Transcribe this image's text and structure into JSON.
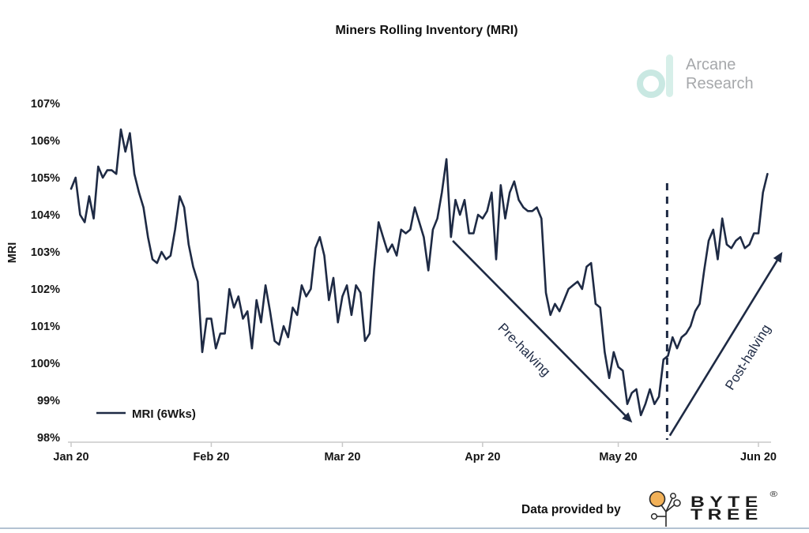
{
  "header": {
    "arcane_logo": {
      "line1": "Arcane",
      "line2": "Research",
      "icon": "arcane-a-icon",
      "icon_color": "#c9e8e2",
      "text_color": "#a6a8ab"
    }
  },
  "footer": {
    "data_provided_by": "Data provided by",
    "bytetree_word_line1": "BYTE",
    "bytetree_word_line2": "TREE",
    "registered_mark": "®",
    "bytetree_icon": "bytetree-tree-icon",
    "bytetree_orange": "#f2b158",
    "divider_color": "#b3c2d2"
  },
  "chart_data": {
    "type": "line",
    "title": "Miners Rolling Inventory (MRI)",
    "ylabel": "MRI",
    "xlabel": "",
    "x_unit": "days since Jan 1 2020, daily data",
    "ylim": [
      98,
      107
    ],
    "grid": false,
    "legend_position": "lower-left",
    "line_color": "#1e2a44",
    "axis_color": "#c9c9c9",
    "yticks": [
      {
        "value": 98,
        "label": "98%"
      },
      {
        "value": 99,
        "label": "99%"
      },
      {
        "value": 100,
        "label": "100%"
      },
      {
        "value": 101,
        "label": "101%"
      },
      {
        "value": 102,
        "label": "102%"
      },
      {
        "value": 103,
        "label": "103%"
      },
      {
        "value": 104,
        "label": "104%"
      },
      {
        "value": 105,
        "label": "105%"
      },
      {
        "value": 106,
        "label": "106%"
      },
      {
        "value": 107,
        "label": "107%"
      }
    ],
    "xticks": [
      {
        "day": 0,
        "label": "Jan 20"
      },
      {
        "day": 31,
        "label": "Feb 20"
      },
      {
        "day": 60,
        "label": "Mar 20"
      },
      {
        "day": 91,
        "label": "Apr 20"
      },
      {
        "day": 121,
        "label": "May 20"
      },
      {
        "day": 152,
        "label": "Jun 20"
      }
    ],
    "series": [
      {
        "name": "MRI (6Wks)",
        "start_day": 0,
        "values": [
          104.7,
          105.0,
          104.0,
          103.8,
          104.5,
          103.9,
          105.3,
          105.0,
          105.2,
          105.2,
          105.1,
          106.3,
          105.7,
          106.2,
          105.1,
          104.6,
          104.2,
          103.4,
          102.8,
          102.7,
          103.0,
          102.8,
          102.9,
          103.6,
          104.5,
          104.2,
          103.2,
          102.6,
          102.2,
          100.3,
          101.2,
          101.2,
          100.4,
          100.8,
          100.8,
          102.0,
          101.5,
          101.8,
          101.2,
          101.4,
          100.4,
          101.7,
          101.1,
          102.1,
          101.4,
          100.6,
          100.5,
          101.0,
          100.7,
          101.5,
          101.3,
          102.1,
          101.8,
          102.0,
          103.1,
          103.4,
          102.9,
          101.7,
          102.3,
          101.1,
          101.8,
          102.1,
          101.3,
          102.1,
          101.9,
          100.6,
          100.8,
          102.5,
          103.8,
          103.4,
          103.0,
          103.2,
          102.9,
          103.6,
          103.5,
          103.6,
          104.2,
          103.8,
          103.4,
          102.5,
          103.6,
          103.9,
          104.6,
          105.5,
          103.4,
          104.4,
          104.0,
          104.4,
          103.5,
          103.5,
          104.0,
          103.9,
          104.1,
          104.6,
          102.8,
          104.8,
          103.9,
          104.6,
          104.9,
          104.4,
          104.2,
          104.1,
          104.1,
          104.2,
          103.9,
          101.9,
          101.3,
          101.6,
          101.4,
          101.7,
          102.0,
          102.1,
          102.2,
          102.0,
          102.6,
          102.7,
          101.6,
          101.5,
          100.3,
          99.6,
          100.3,
          99.9,
          99.8,
          98.9,
          99.2,
          99.3,
          98.6,
          98.9,
          99.3,
          98.9,
          99.1,
          100.1,
          100.2,
          100.7,
          100.4,
          100.7,
          100.8,
          101.0,
          101.4,
          101.6,
          102.5,
          103.3,
          103.6,
          102.8,
          103.9,
          103.2,
          103.1,
          103.3,
          103.4,
          103.1,
          103.2,
          103.5,
          103.5,
          104.6,
          105.1
        ]
      }
    ],
    "annotations": [
      {
        "type": "arrow",
        "label": "Pre-halving",
        "from_day": 84.4,
        "from_value": 103.3,
        "to_day": 124.1,
        "to_value": 98.4
      },
      {
        "type": "arrow",
        "label": "Post-halving",
        "from_day": 132.4,
        "from_value": 98.05,
        "to_day": 157.3,
        "to_value": 103.0
      },
      {
        "type": "dashed-vline",
        "day": 131.8,
        "top_value": 104.85
      }
    ]
  }
}
